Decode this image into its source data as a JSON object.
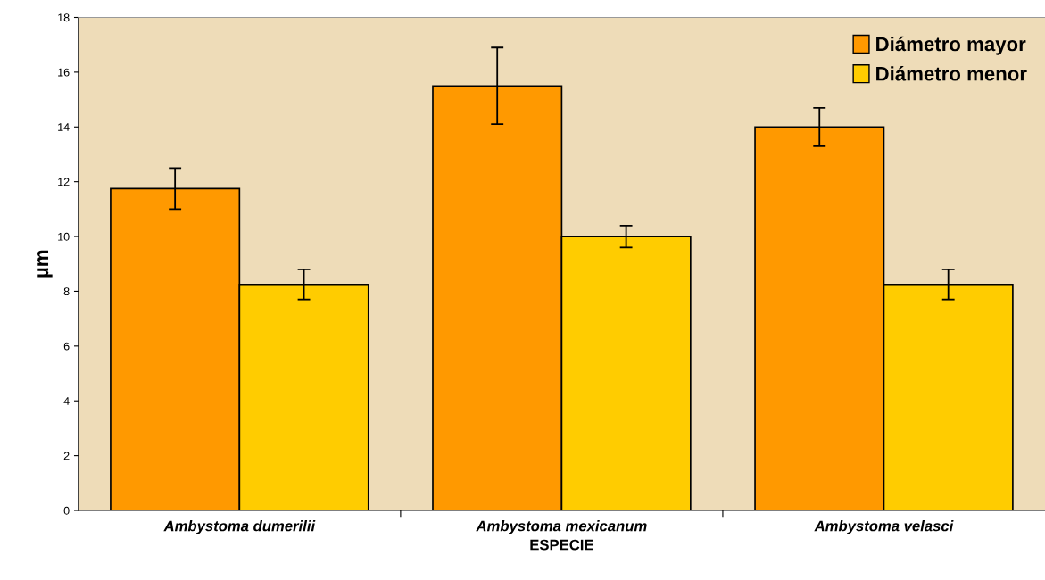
{
  "chart_data": {
    "type": "bar",
    "xlabel": "ESPECIE",
    "ylabel": "µm",
    "categories": [
      "Ambystoma dumerilii",
      "Ambystoma mexicanum",
      "Ambystoma velasci"
    ],
    "series": [
      {
        "name": "Diámetro mayor",
        "color": "#ff9900",
        "values": [
          11.75,
          15.5,
          14.0
        ],
        "errors": [
          0.75,
          1.4,
          0.7
        ]
      },
      {
        "name": "Diámetro menor",
        "color": "#ffcc00",
        "values": [
          8.25,
          10.0,
          8.25
        ],
        "errors": [
          0.55,
          0.4,
          0.55
        ]
      }
    ],
    "ylim": [
      0,
      18
    ],
    "yticks": [
      0,
      2,
      4,
      6,
      8,
      10,
      12,
      14,
      16,
      18
    ],
    "grid": false,
    "legend": "top right"
  }
}
